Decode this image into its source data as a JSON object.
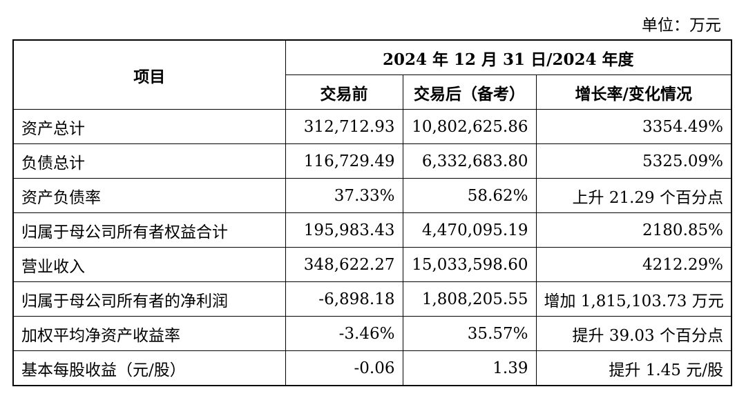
{
  "unit_label": "单位：万元",
  "table": {
    "header": {
      "item": "项目",
      "period": "2024 年 12 月 31 日/2024 年度",
      "columns": [
        "交易前",
        "交易后（备考）",
        "增长率/变化情况"
      ]
    },
    "rows": [
      {
        "label": "资产总计",
        "before": "312,712.93",
        "after": "10,802,625.86",
        "change": "3354.49%"
      },
      {
        "label": "负债总计",
        "before": "116,729.49",
        "after": "6,332,683.80",
        "change": "5325.09%"
      },
      {
        "label": "资产负债率",
        "before": "37.33%",
        "after": "58.62%",
        "change": "上升 21.29 个百分点"
      },
      {
        "label": "归属于母公司所有者权益合计",
        "before": "195,983.43",
        "after": "4,470,095.19",
        "change": "2180.85%"
      },
      {
        "label": "营业收入",
        "before": "348,622.27",
        "after": "15,033,598.60",
        "change": "4212.29%"
      },
      {
        "label": "归属于母公司所有者的净利润",
        "before": "-6,898.18",
        "after": "1,808,205.55",
        "change": "增加 1,815,103.73 万元"
      },
      {
        "label": "加权平均净资产收益率",
        "before": "-3.46%",
        "after": "35.57%",
        "change": "提升 39.03 个百分点"
      },
      {
        "label": "基本每股收益（元/股）",
        "before": "-0.06",
        "after": "1.39",
        "change": "提升 1.45 元/股"
      }
    ]
  }
}
